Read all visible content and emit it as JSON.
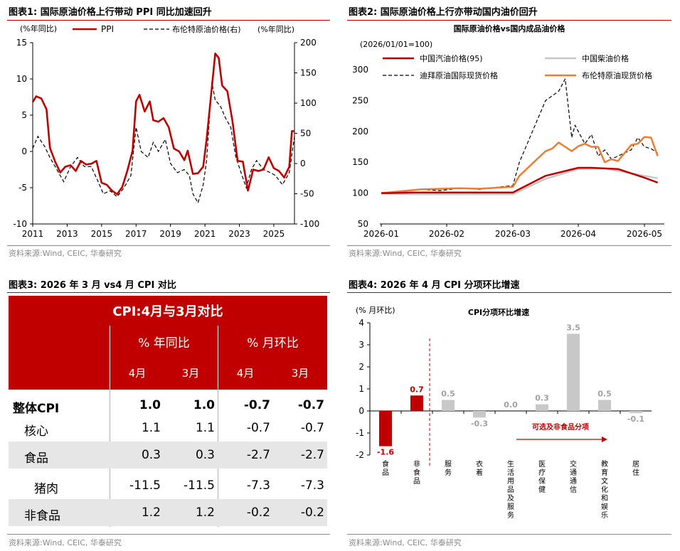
{
  "panels": [
    {
      "title": "图表1:  国际原油价格上行带动 PPI 同比加速回升",
      "source": "资料来源:Wind, CEIC, 华泰研究"
    },
    {
      "title": "图表2:  国际原油价格上行亦带动国内油价回升",
      "source": "资料来源:Wind, CEIC, 华泰研究"
    },
    {
      "title": "图表3:  2026 年 3 月 vs4 月 CPI 对比",
      "source": "资料来源:Wind, CEIC, 华泰研究"
    },
    {
      "title": "图表4:  2026 年 4 月 CPI 分项环比增速",
      "source": "资料来源:Wind, CEIC, 华泰研究"
    }
  ],
  "chart_data": [
    {
      "type": "line",
      "ylabel_left": "(%年同比)",
      "ylabel_right": "(%年同比)",
      "yticks_left": [
        "15",
        "10",
        "5",
        "0",
        "-5",
        "-10"
      ],
      "yticks_right": [
        "200",
        "150",
        "100",
        "50",
        "0",
        "-50",
        "-100"
      ],
      "xticks": [
        "2011",
        "2013",
        "2015",
        "2017",
        "2019",
        "2021",
        "2023",
        "2025"
      ],
      "ylim_left": [
        -10,
        15
      ],
      "ylim_right": [
        -100,
        200
      ],
      "xlim": [
        2011,
        2026.2
      ],
      "grid": false,
      "legend": "top",
      "series": [
        {
          "name": "PPI",
          "axis": "left",
          "color": "#c00000",
          "x": [
            2011,
            2011.2,
            2011.5,
            2011.8,
            2012,
            2012.3,
            2012.6,
            2012.9,
            2013.2,
            2013.5,
            2013.8,
            2014.1,
            2014.4,
            2014.7,
            2015,
            2015.3,
            2015.6,
            2015.9,
            2016.2,
            2016.5,
            2016.8,
            2017,
            2017.2,
            2017.5,
            2017.8,
            2018,
            2018.3,
            2018.6,
            2018.9,
            2019.2,
            2019.5,
            2019.8,
            2020,
            2020.3,
            2020.6,
            2020.9,
            2021.1,
            2021.4,
            2021.6,
            2021.8,
            2022,
            2022.3,
            2022.6,
            2022.9,
            2023.2,
            2023.5,
            2023.8,
            2024.1,
            2024.4,
            2024.7,
            2025,
            2025.3,
            2025.6,
            2025.9,
            2026.05,
            2026.2
          ],
          "y": [
            6.8,
            7.6,
            7.3,
            5.8,
            0.5,
            -1.4,
            -2.9,
            -2.1,
            -1.9,
            -2.7,
            -1.3,
            -1.8,
            -1.7,
            -1.3,
            -4.3,
            -4.6,
            -5.4,
            -5.9,
            -4.9,
            -2.6,
            0.1,
            6.9,
            7.8,
            5.5,
            6.9,
            4.3,
            4.1,
            4.6,
            3.3,
            0.4,
            0.0,
            -1.2,
            0.1,
            -3.1,
            -3.0,
            -2.1,
            1.7,
            8.8,
            13.5,
            12.9,
            9.1,
            8.3,
            4.2,
            -1.3,
            -1.4,
            -5.4,
            -2.5,
            -2.7,
            -2.5,
            -0.8,
            -2.3,
            -2.7,
            -3.6,
            -2.1,
            2.8,
            2.8
          ]
        },
        {
          "name": "布伦特原油价格(右)",
          "axis": "right",
          "color": "#000000",
          "dash": true,
          "x": [
            2011,
            2011.3,
            2011.7,
            2012,
            2012.4,
            2012.8,
            2013.2,
            2013.6,
            2014,
            2014.4,
            2014.8,
            2015.1,
            2015.5,
            2015.9,
            2016.3,
            2016.7,
            2017,
            2017.3,
            2017.7,
            2018,
            2018.3,
            2018.7,
            2019,
            2019.4,
            2019.8,
            2020.1,
            2020.3,
            2020.6,
            2020.9,
            2021.1,
            2021.4,
            2021.6,
            2021.9,
            2022.2,
            2022.5,
            2022.8,
            2023.1,
            2023.4,
            2023.7,
            2024,
            2024.4,
            2024.8,
            2025.1,
            2025.5,
            2025.9,
            2026.2
          ],
          "y": [
            25,
            45,
            28,
            10,
            -10,
            -30,
            -5,
            10,
            -5,
            -5,
            -30,
            -50,
            -45,
            -55,
            -40,
            -20,
            60,
            20,
            10,
            35,
            20,
            40,
            0,
            -15,
            -10,
            -20,
            -50,
            -65,
            -35,
            5,
            135,
            105,
            95,
            75,
            60,
            10,
            -15,
            -40,
            -10,
            5,
            -10,
            -15,
            -20,
            -35,
            -15,
            45
          ]
        }
      ]
    },
    {
      "type": "line",
      "title": "国际原油价格vs国内成品油价格",
      "subtitle": "(2026/01/01=100)",
      "yticks": [
        "300",
        "250",
        "200",
        "150",
        "100",
        "50"
      ],
      "xticks": [
        "2026-01",
        "2026-02",
        "2026-03",
        "2026-04",
        "2026-05"
      ],
      "ylim": [
        50,
        300
      ],
      "grid": false,
      "legend": "top",
      "series": [
        {
          "name": "中国汽油价格(95)",
          "color": "#c00000",
          "x": [
            0,
            0.1,
            0.5,
            0.8,
            1.0,
            1.5,
            2.0,
            2.5,
            3.0,
            3.2,
            3.6,
            4.0,
            4.2
          ],
          "y": [
            100,
            100,
            101,
            101,
            101,
            101,
            101,
            128,
            141,
            141,
            139,
            125,
            117
          ]
        },
        {
          "name": "中国柴油价格",
          "color": "#c8c8c8",
          "x": [
            0,
            0.5,
            1.0,
            1.5,
            2.0,
            2.5,
            3.0,
            3.4,
            3.8,
            4.0,
            4.2
          ],
          "y": [
            100,
            98,
            98,
            98,
            98,
            123,
            139,
            140,
            132,
            128,
            124
          ]
        },
        {
          "name": "迪拜原油国际现货价格",
          "color": "#000000",
          "dash": true,
          "x": [
            0,
            0.3,
            0.6,
            0.9,
            1.2,
            1.5,
            1.8,
            2.0,
            2.1,
            2.3,
            2.5,
            2.7,
            2.8,
            2.9,
            2.95,
            3.0,
            3.1,
            3.2,
            3.3,
            3.4,
            3.5,
            3.6,
            3.7,
            3.8,
            3.9,
            4.0,
            4.1,
            4.2
          ],
          "y": [
            100,
            102,
            106,
            104,
            108,
            106,
            110,
            112,
            150,
            200,
            250,
            265,
            285,
            190,
            210,
            200,
            180,
            195,
            160,
            170,
            155,
            160,
            165,
            170,
            190,
            175,
            172,
            165
          ]
        },
        {
          "name": "布伦特原油现货价格",
          "color": "#ed7d31",
          "x": [
            0,
            0.3,
            0.6,
            0.9,
            1.2,
            1.5,
            1.8,
            2.0,
            2.1,
            2.3,
            2.5,
            2.6,
            2.7,
            2.8,
            2.9,
            3.0,
            3.1,
            3.2,
            3.3,
            3.4,
            3.5,
            3.6,
            3.7,
            3.8,
            3.9,
            4.0,
            4.1,
            4.2
          ],
          "y": [
            100,
            103,
            106,
            107,
            108,
            107,
            109,
            110,
            128,
            148,
            168,
            172,
            182,
            175,
            168,
            176,
            180,
            175,
            175,
            150,
            155,
            152,
            165,
            178,
            180,
            191,
            190,
            160
          ]
        }
      ]
    },
    {
      "type": "table",
      "title": "CPI:4月与3月对比",
      "groups": [
        "% 年同比",
        "% 月环比"
      ],
      "subheaders": [
        "4月",
        "3月",
        "4月",
        "3月"
      ],
      "rows": [
        {
          "label": "整体CPI",
          "values": [
            "1.0",
            "1.0",
            "-0.7",
            "-0.7"
          ],
          "bold": true
        },
        {
          "label": "核心",
          "values": [
            "1.1",
            "1.1",
            "-0.7",
            "-0.7"
          ]
        },
        {
          "label": "食品",
          "values": [
            "0.3",
            "0.3",
            "-2.7",
            "-2.7"
          ]
        },
        {
          "label": "猪肉",
          "values": [
            "-11.5",
            "-11.5",
            "-7.3",
            "-7.3"
          ]
        },
        {
          "label": "非食品",
          "values": [
            "1.2",
            "1.2",
            "-0.2",
            "-0.2"
          ]
        }
      ]
    },
    {
      "type": "bar",
      "title": "CPI分项环比增速",
      "ylabel": "(% 月环比)",
      "ylim": [
        -2,
        4
      ],
      "yticks": [
        "4",
        "3",
        "2",
        "1",
        "0",
        "-1",
        "-2"
      ],
      "categories": [
        "食品",
        "非食品",
        "服务",
        "衣着",
        "生活用品及服务",
        "医疗保健",
        "交通通信",
        "教育文化和娱乐",
        "居住"
      ],
      "values": [
        -1.6,
        0.7,
        0.5,
        -0.3,
        0.0,
        0.3,
        3.5,
        0.5,
        -0.1
      ],
      "value_labels": [
        "-1.6",
        "0.7",
        "0.5",
        "-0.3",
        "0.0",
        "0.3",
        "3.5",
        "0.5",
        "-0.1"
      ],
      "colors": [
        "#c00000",
        "#c00000",
        "#c8c8c8",
        "#c8c8c8",
        "#c8c8c8",
        "#c8c8c8",
        "#c8c8c8",
        "#c8c8c8",
        "#c8c8c8"
      ],
      "annotation": "可选及非食品分项"
    }
  ]
}
